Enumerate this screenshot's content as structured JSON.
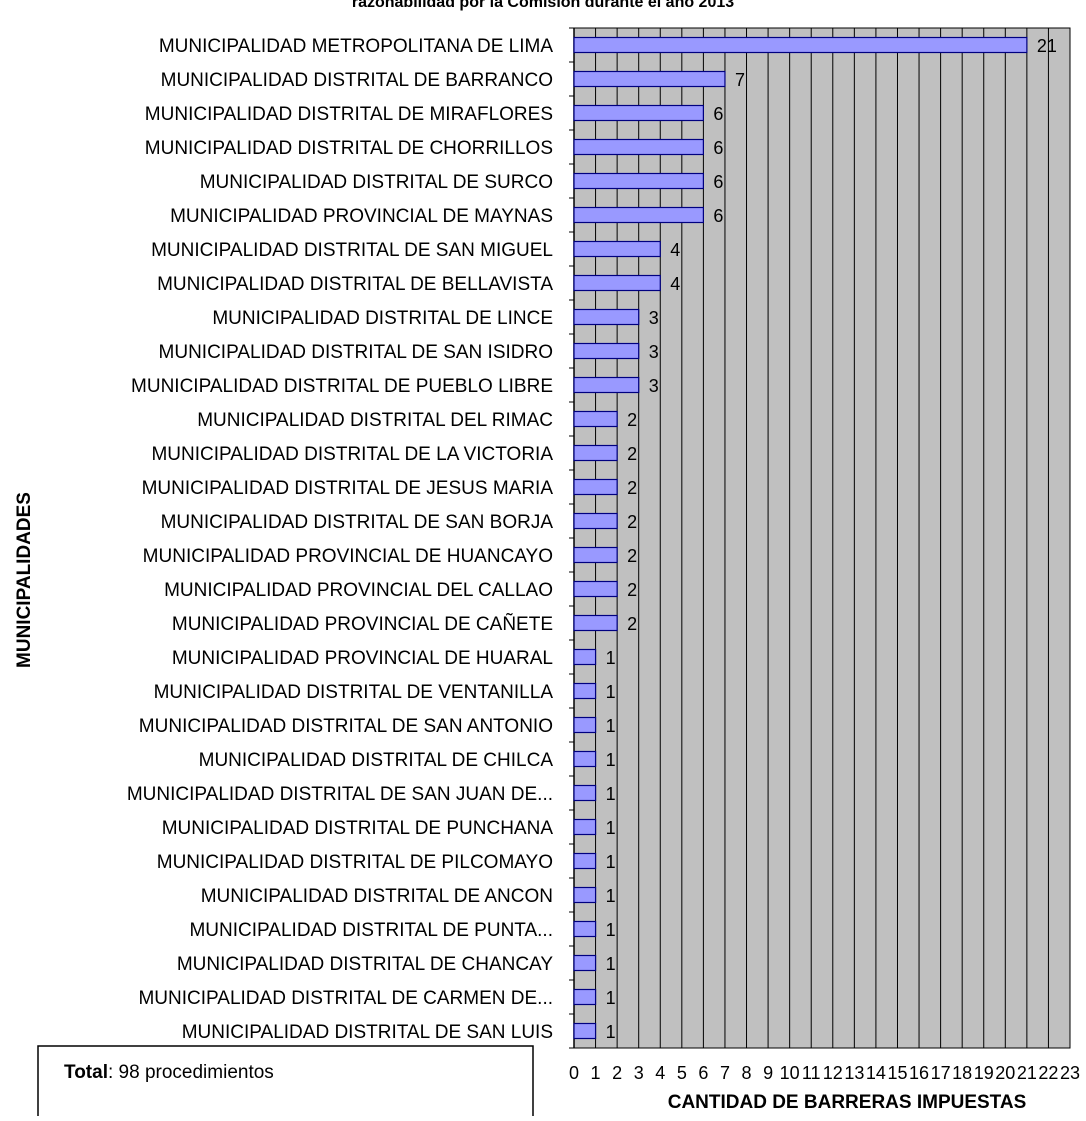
{
  "title": "razonabilidad por la Comisión durante el año 2013",
  "total_box": {
    "bold": "Total",
    "rest": ": 98 procedimientos"
  },
  "chart_data": {
    "type": "bar",
    "orientation": "horizontal",
    "xlabel": "CANTIDAD DE BARRERAS  IMPUESTAS",
    "ylabel": "MUNICIPALIDADES",
    "xlim": [
      0,
      23
    ],
    "xticks": [
      "0",
      "1",
      "2",
      "3",
      "4",
      "5",
      "6",
      "7",
      "8",
      "9",
      "10",
      "11",
      "12",
      "13",
      "14",
      "15",
      "16",
      "17",
      "18",
      "19",
      "20",
      "21",
      "22",
      "23"
    ],
    "grid": true,
    "colors": {
      "bar": "#9999ff",
      "bar_stroke": "#000080",
      "plot_bg": "#c0c0c0"
    },
    "categories": [
      "MUNICIPALIDAD METROPOLITANA DE LIMA",
      "MUNICIPALIDAD DISTRITAL DE BARRANCO",
      "MUNICIPALIDAD DISTRITAL DE MIRAFLORES",
      "MUNICIPALIDAD DISTRITAL DE CHORRILLOS",
      "MUNICIPALIDAD DISTRITAL DE SURCO",
      "MUNICIPALIDAD PROVINCIAL DE MAYNAS",
      "MUNICIPALIDAD DISTRITAL DE SAN MIGUEL",
      "MUNICIPALIDAD DISTRITAL DE BELLAVISTA",
      "MUNICIPALIDAD DISTRITAL DE LINCE",
      "MUNICIPALIDAD DISTRITAL DE SAN ISIDRO",
      "MUNICIPALIDAD DISTRITAL DE PUEBLO LIBRE",
      "MUNICIPALIDAD DISTRITAL DEL RIMAC",
      "MUNICIPALIDAD DISTRITAL DE LA VICTORIA",
      "MUNICIPALIDAD DISTRITAL DE JESUS MARIA",
      "MUNICIPALIDAD DISTRITAL DE SAN BORJA",
      "MUNICIPALIDAD PROVINCIAL DE HUANCAYO",
      "MUNICIPALIDAD PROVINCIAL DEL CALLAO",
      "MUNICIPALIDAD PROVINCIAL DE CAÑETE",
      "MUNICIPALIDAD PROVINCIAL DE HUARAL",
      "MUNICIPALIDAD DISTRITAL DE VENTANILLA",
      "MUNICIPALIDAD DISTRITAL DE SAN ANTONIO",
      "MUNICIPALIDAD DISTRITAL DE CHILCA",
      "MUNICIPALIDAD DISTRITAL DE SAN JUAN DE...",
      "MUNICIPALIDAD DISTRITAL DE PUNCHANA",
      "MUNICIPALIDAD DISTRITAL DE PILCOMAYO",
      "MUNICIPALIDAD DISTRITAL DE ANCON",
      "MUNICIPALIDAD DISTRITAL DE PUNTA...",
      "MUNICIPALIDAD DISTRITAL DE CHANCAY",
      "MUNICIPALIDAD DISTRITAL DE CARMEN DE...",
      "MUNICIPALIDAD DISTRITAL DE SAN LUIS"
    ],
    "values": [
      21,
      7,
      6,
      6,
      6,
      6,
      4,
      4,
      3,
      3,
      3,
      2,
      2,
      2,
      2,
      2,
      2,
      2,
      1,
      1,
      1,
      1,
      1,
      1,
      1,
      1,
      1,
      1,
      1,
      1
    ]
  }
}
